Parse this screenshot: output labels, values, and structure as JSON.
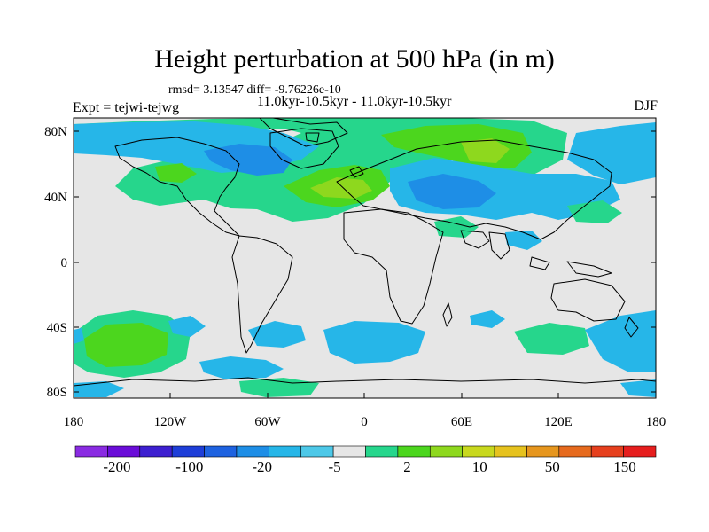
{
  "title": "Height perturbation at 500 hPa (in m)",
  "stats_text": "rmsd= 3.13547 diff= -9.76226e-10",
  "period_text": "11.0kyr-10.5kyr - 11.0kyr-10.5kyr",
  "experiment_text": "Expt = tejwi-tejwg",
  "season": "DJF",
  "lat_labels": [
    "80N",
    "40N",
    "0",
    "40S",
    "80S"
  ],
  "lon_labels": [
    "180",
    "120W",
    "60W",
    "0",
    "60E",
    "120E",
    "180"
  ],
  "colorbar": {
    "colors": [
      "#8a2be2",
      "#6a0dd8",
      "#3d1fd0",
      "#1e3ed8",
      "#1e62e0",
      "#1e8ee6",
      "#26b6e8",
      "#4dc8e8",
      "#e6e6e6",
      "#26d68c",
      "#4cd61e",
      "#8ed81e",
      "#c8d81e",
      "#e6c21e",
      "#e6961e",
      "#e66a1e",
      "#e6401e",
      "#e61e1e"
    ],
    "tick_labels": [
      "-200",
      "-100",
      "-20",
      "-5",
      "2",
      "10",
      "50",
      "150"
    ]
  },
  "legend": {
    "neutral": "#e6e6e6",
    "pos1": "#26d68c",
    "pos2": "#4cd61e",
    "pos3": "#8ed81e",
    "pos4": "#c8d81e",
    "neg1": "#26b6e8",
    "neg2": "#1e8ee6",
    "neg3": "#1e62e0"
  }
}
